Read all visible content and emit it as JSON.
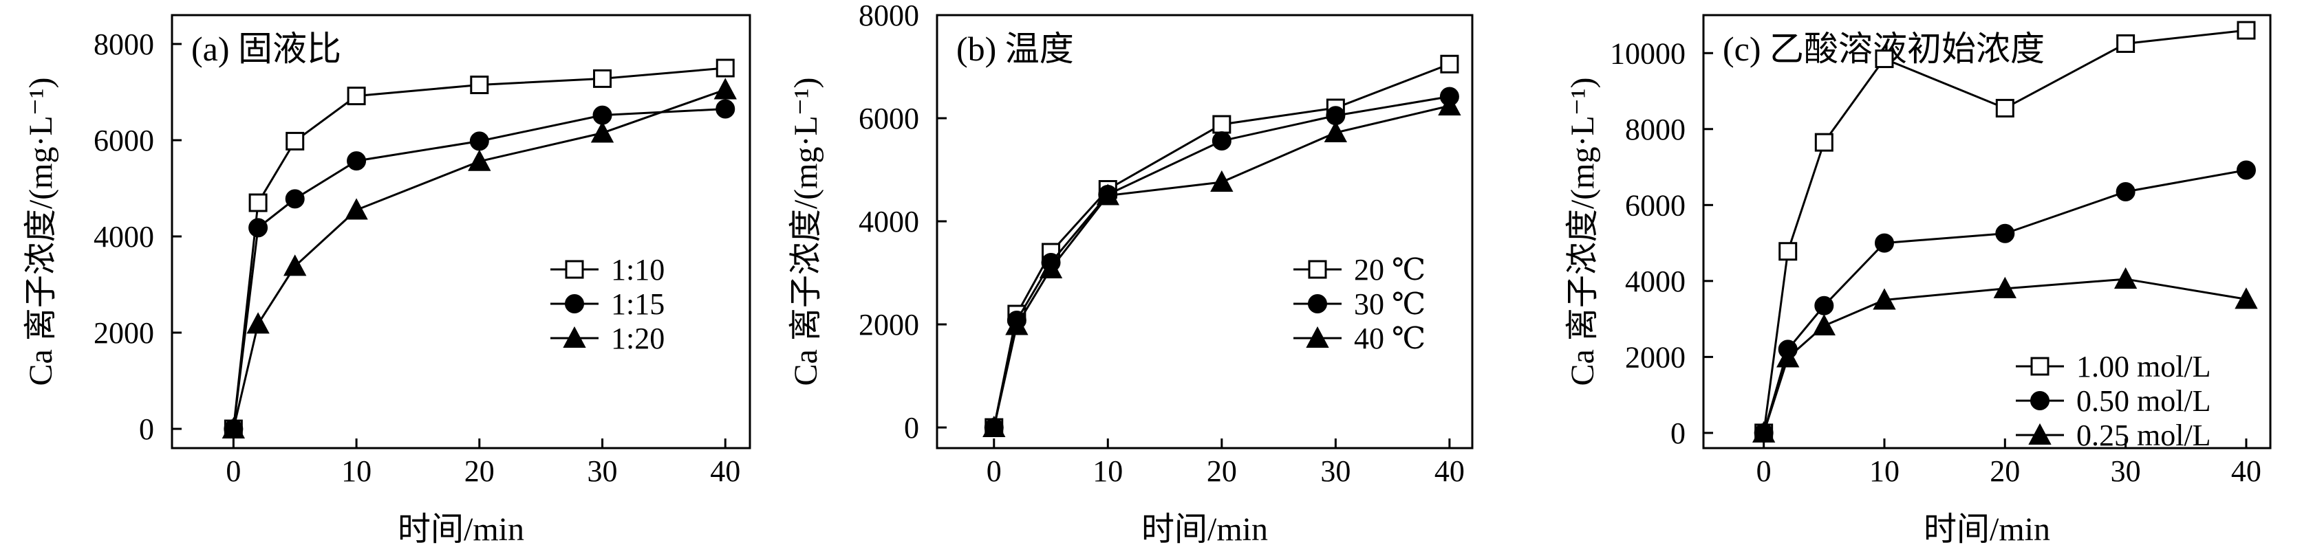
{
  "chart_data": [
    {
      "type": "line",
      "title": "(a) 固液比",
      "xlabel": "时间/min",
      "ylabel": "Ca 离子浓度/(mg·L⁻¹)",
      "xlim": [
        -5,
        42
      ],
      "ylim": [
        -400,
        8600
      ],
      "xticks": [
        0,
        10,
        20,
        30,
        40
      ],
      "yticks": [
        0,
        2000,
        4000,
        6000,
        8000
      ],
      "x": [
        0,
        2,
        5,
        10,
        20,
        30,
        40
      ],
      "legend_position": "right",
      "series": [
        {
          "name": "1:10",
          "marker": "square-open",
          "values": [
            0,
            4700,
            5980,
            6920,
            7150,
            7280,
            7500
          ]
        },
        {
          "name": "1:15",
          "marker": "circle-filled",
          "values": [
            0,
            4180,
            4780,
            5570,
            5980,
            6520,
            6650
          ]
        },
        {
          "name": "1:20",
          "marker": "triangle-filled",
          "values": [
            0,
            2180,
            3380,
            4550,
            5560,
            6150,
            7050
          ]
        }
      ]
    },
    {
      "type": "line",
      "title": "(b) 温度",
      "xlabel": "时间/min",
      "ylabel": "Ca 离子浓度/(mg·L⁻¹)",
      "xlim": [
        -5,
        42
      ],
      "ylim": [
        -400,
        8000
      ],
      "xticks": [
        0,
        10,
        20,
        30,
        40
      ],
      "yticks": [
        0,
        2000,
        4000,
        6000,
        8000
      ],
      "x": [
        0,
        2,
        5,
        10,
        20,
        30,
        40
      ],
      "legend_position": "right",
      "series": [
        {
          "name": "20 ℃",
          "marker": "square-open",
          "values": [
            0,
            2200,
            3400,
            4620,
            5880,
            6200,
            7050
          ]
        },
        {
          "name": "30 ℃",
          "marker": "circle-filled",
          "values": [
            0,
            2080,
            3200,
            4520,
            5560,
            6050,
            6420
          ]
        },
        {
          "name": "40 ℃",
          "marker": "triangle-filled",
          "values": [
            0,
            1980,
            3080,
            4500,
            4760,
            5720,
            6240
          ]
        }
      ]
    },
    {
      "type": "line",
      "title": "(c) 乙酸溶液初始浓度",
      "xlabel": "时间/min",
      "ylabel": "Ca 离子浓度/(mg·L⁻¹)",
      "xlim": [
        -5,
        42
      ],
      "ylim": [
        -400,
        11000
      ],
      "xticks": [
        0,
        10,
        20,
        30,
        40
      ],
      "yticks": [
        0,
        2000,
        4000,
        6000,
        8000,
        10000
      ],
      "x": [
        0,
        2,
        5,
        10,
        20,
        30,
        40
      ],
      "legend_position": "bottom-right",
      "series": [
        {
          "name": "1.00 mol/L",
          "marker": "square-open",
          "values": [
            0,
            4780,
            7650,
            9850,
            8550,
            10250,
            10600
          ]
        },
        {
          "name": "0.50 mol/L",
          "marker": "circle-filled",
          "values": [
            0,
            2200,
            3350,
            5000,
            5250,
            6350,
            6920
          ]
        },
        {
          "name": "0.25 mol/L",
          "marker": "triangle-filled",
          "values": [
            0,
            1980,
            2820,
            3500,
            3800,
            4050,
            3520
          ]
        }
      ]
    }
  ]
}
